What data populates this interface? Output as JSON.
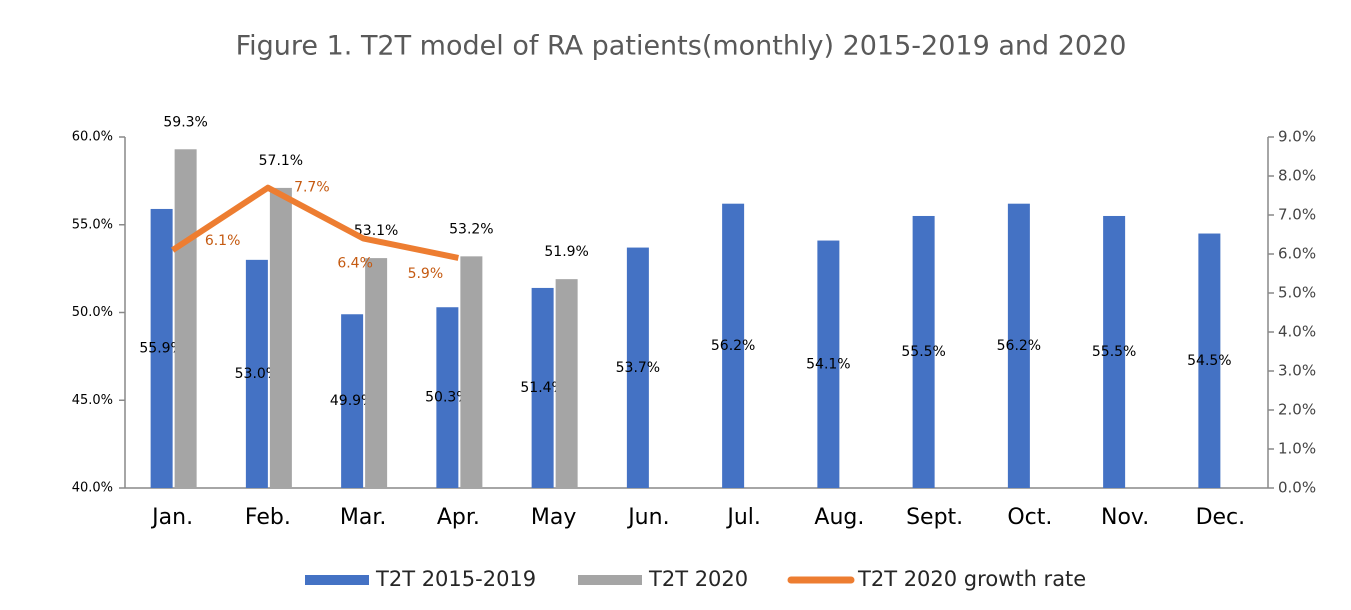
{
  "chart_data": {
    "type": "bar",
    "title": "Figure 1. T2T model of RA patients(monthly)  2015-2019 and 2020",
    "categories": [
      "Jan.",
      "Feb.",
      "Mar.",
      "Apr.",
      "May",
      "Jun.",
      "Jul.",
      "Aug.",
      "Sept.",
      "Oct.",
      "Nov.",
      "Dec."
    ],
    "series": [
      {
        "name": "T2T 2015-2019",
        "color": "#4472c4",
        "type": "bar",
        "values": [
          55.9,
          53.0,
          49.9,
          50.3,
          51.4,
          53.7,
          56.2,
          54.1,
          55.5,
          56.2,
          55.5,
          54.5
        ],
        "value_labels": [
          "55.9%",
          "53.0%",
          "49.9%",
          "50.3%",
          "51.4%",
          "53.7%",
          "56.2%",
          "54.1%",
          "55.5%",
          "56.2%",
          "55.5%",
          "54.5%"
        ]
      },
      {
        "name": "T2T 2020",
        "color": "#a5a5a5",
        "type": "bar",
        "values": [
          59.3,
          57.1,
          53.1,
          53.2,
          51.9,
          null,
          null,
          null,
          null,
          null,
          null,
          null
        ],
        "value_labels": [
          "59.3%",
          "57.1%",
          "53.1%",
          "53.2%",
          "51.9%",
          null,
          null,
          null,
          null,
          null,
          null,
          null
        ]
      },
      {
        "name": "T2T 2020 growth rate",
        "color": "#ed7d31",
        "type": "line",
        "axis": "y2",
        "values": [
          6.1,
          7.7,
          6.4,
          5.9,
          null,
          null,
          null,
          null,
          null,
          null,
          null,
          null
        ],
        "value_labels": [
          "6.1%",
          "7.7%",
          "6.4%",
          "5.9%",
          null,
          null,
          null,
          null,
          null,
          null,
          null,
          null
        ]
      }
    ],
    "ylim": [
      40,
      60
    ],
    "yticks": [
      {
        "value": 40,
        "label": "40.0%"
      },
      {
        "value": 45,
        "label": "45.0%"
      },
      {
        "value": 50,
        "label": "50.0%"
      },
      {
        "value": 55,
        "label": "55.0%"
      },
      {
        "value": 60,
        "label": "60.0%"
      }
    ],
    "y2lim": [
      0,
      9
    ],
    "y2ticks": [
      {
        "value": 0,
        "label": "0.0%"
      },
      {
        "value": 1,
        "label": "1.0%"
      },
      {
        "value": 2,
        "label": "2.0%"
      },
      {
        "value": 3,
        "label": "3.0%"
      },
      {
        "value": 4,
        "label": "4.0%"
      },
      {
        "value": 5,
        "label": "5.0%"
      },
      {
        "value": 6,
        "label": "6.0%"
      },
      {
        "value": 7,
        "label": "7.0%"
      },
      {
        "value": 8,
        "label": "8.0%"
      },
      {
        "value": 9,
        "label": "9.0%"
      }
    ],
    "grid": false,
    "legend": "bottom"
  }
}
